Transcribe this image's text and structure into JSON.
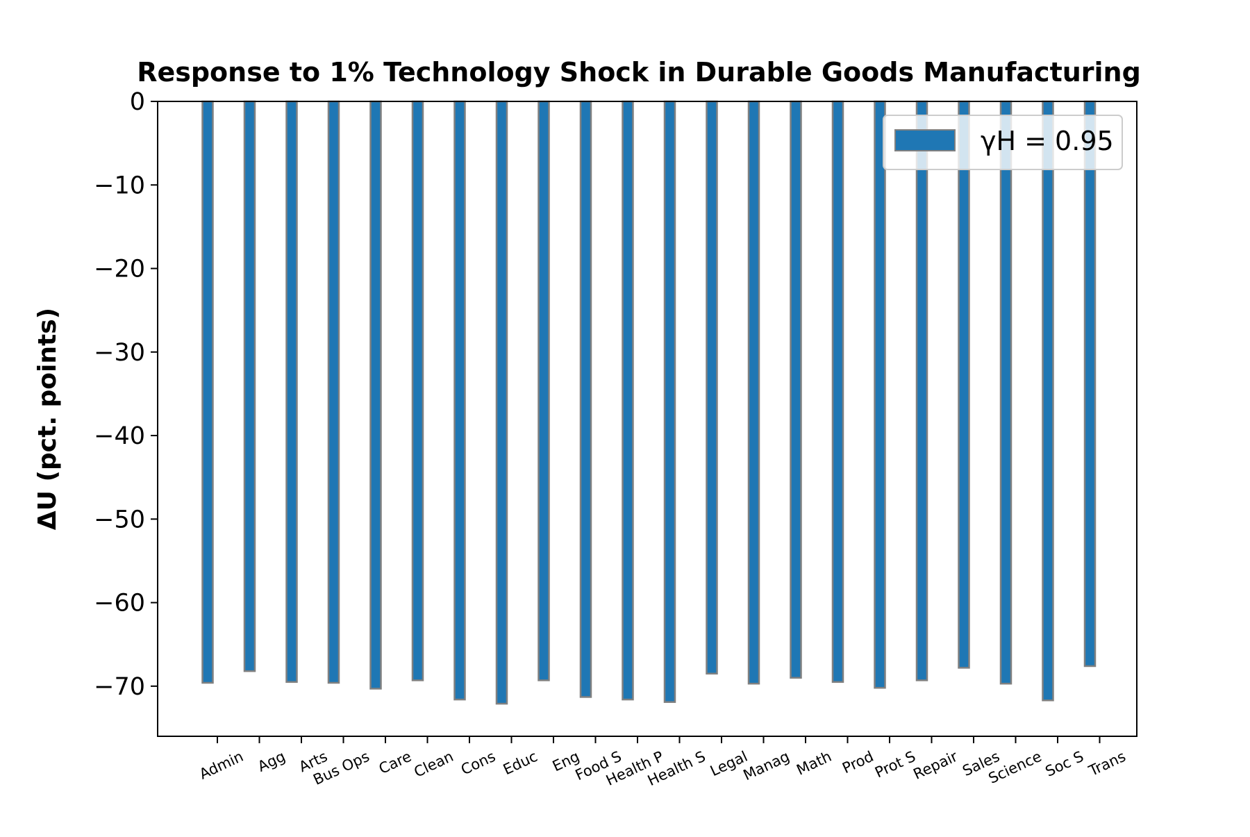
{
  "chart_data": {
    "type": "bar",
    "title": "Response to 1% Technology Shock in Durable Goods Manufacturing",
    "ylabel": "ΔU  (pct. points)",
    "xlabel": "",
    "ylim": [
      -76,
      0
    ],
    "yticks": [
      0,
      -10,
      -20,
      -30,
      -40,
      -50,
      -60,
      -70
    ],
    "grid": false,
    "legend_position": "top-right",
    "categories": [
      "Admin",
      "Agg",
      "Arts",
      "Bus Ops",
      "Care",
      "Clean",
      "Cons",
      "Educ",
      "Eng",
      "Food S",
      "Health P",
      "Health S",
      "Legal",
      "Manag",
      "Math",
      "Prod",
      "Prot S",
      "Repair",
      "Sales",
      "Science",
      "Soc S",
      "Trans"
    ],
    "series": [
      {
        "name": "γH = 0.95",
        "color": "#1f77b4",
        "edge_color": "#808080",
        "values": [
          -69.6,
          -68.2,
          -69.5,
          -69.6,
          -70.3,
          -69.3,
          -71.6,
          -72.1,
          -69.3,
          -71.3,
          -71.6,
          -71.9,
          -68.5,
          -69.7,
          -69.0,
          -69.5,
          -70.2,
          -69.3,
          -67.8,
          -69.7,
          -71.7,
          -67.6
        ]
      }
    ]
  }
}
